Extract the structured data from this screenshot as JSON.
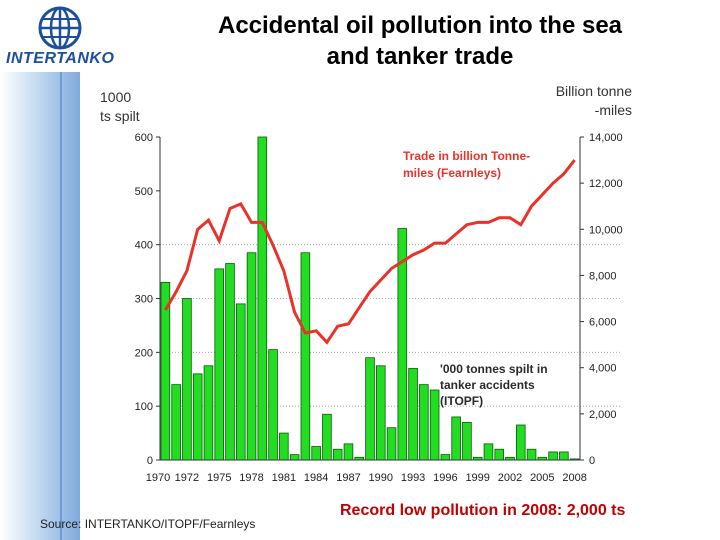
{
  "brand": {
    "name": "INTERTANKO"
  },
  "colors": {
    "bar": "#22dd22",
    "bar_stroke": "#0a5a0a",
    "line": "#e8322a",
    "title": "#000000",
    "record": "#c00000"
  },
  "header": {
    "title_line1": "Accidental oil pollution into the sea",
    "title_line2": "and tanker trade"
  },
  "axes": {
    "left_unit_line1": "1000",
    "left_unit_line2": "ts spilt",
    "right_unit_line1": "Billion tonne",
    "right_unit_line2": "-miles",
    "left_ticks": [
      "0",
      "100",
      "200",
      "300",
      "400",
      "500",
      "600"
    ],
    "right_ticks": [
      "0",
      "2,000",
      "4,000",
      "6,000",
      "8,000",
      "10,000",
      "12,000",
      "14,000"
    ],
    "x_ticks": [
      "1970",
      "1972",
      "1975",
      "1978",
      "1981",
      "1984",
      "1987",
      "1990",
      "1993",
      "1996",
      "1999",
      "2002",
      "2005",
      "2008"
    ]
  },
  "annotations": {
    "trade_line1": "Trade in billion Tonne-",
    "trade_line2": "miles (Fearnleys)",
    "spill_line1": "'000 tonnes spilt in",
    "spill_line2": "tanker accidents",
    "spill_line3": "(ITOPF)"
  },
  "footer": {
    "source": "Source: INTERTANKO/ITOPF/Fearnleys",
    "record": "Record low pollution in 2008: 2,000 ts"
  },
  "chart_data": {
    "type": "bar",
    "title": "Accidental oil pollution into the sea and tanker trade",
    "xlabel": "",
    "ylabel": "1000 ts spilt",
    "ylabel_right": "Billion tonne-miles",
    "ylim": [
      0,
      600
    ],
    "ylim_right": [
      0,
      14000
    ],
    "grid": true,
    "categories": [
      1970,
      1971,
      1972,
      1973,
      1974,
      1975,
      1976,
      1977,
      1978,
      1979,
      1980,
      1981,
      1982,
      1983,
      1984,
      1985,
      1986,
      1987,
      1988,
      1989,
      1990,
      1991,
      1992,
      1993,
      1994,
      1995,
      1996,
      1997,
      1998,
      1999,
      2000,
      2001,
      2002,
      2003,
      2004,
      2005,
      2006,
      2007,
      2008
    ],
    "series": [
      {
        "name": "'000 tonnes spilt in tanker accidents (ITOPF)",
        "type": "bar",
        "axis": "left",
        "values": [
          330,
          140,
          300,
          160,
          175,
          355,
          365,
          290,
          385,
          600,
          205,
          50,
          10,
          385,
          25,
          85,
          20,
          30,
          5,
          190,
          175,
          60,
          430,
          170,
          140,
          130,
          10,
          80,
          70,
          5,
          30,
          20,
          5,
          65,
          20,
          5,
          15,
          15,
          2
        ]
      },
      {
        "name": "Trade in billion Tonne-miles (Fearnleys)",
        "type": "line",
        "axis": "right",
        "values": [
          6500,
          7300,
          8200,
          10000,
          10400,
          9500,
          10900,
          11100,
          10300,
          10300,
          9300,
          8200,
          6400,
          5500,
          5600,
          5100,
          5800,
          5900,
          6600,
          7300,
          7800,
          8300,
          8600,
          8900,
          9100,
          9400,
          9400,
          9800,
          10200,
          10300,
          10300,
          10500,
          10500,
          10200,
          11000,
          11500,
          12000,
          12400,
          13000
        ]
      }
    ]
  }
}
